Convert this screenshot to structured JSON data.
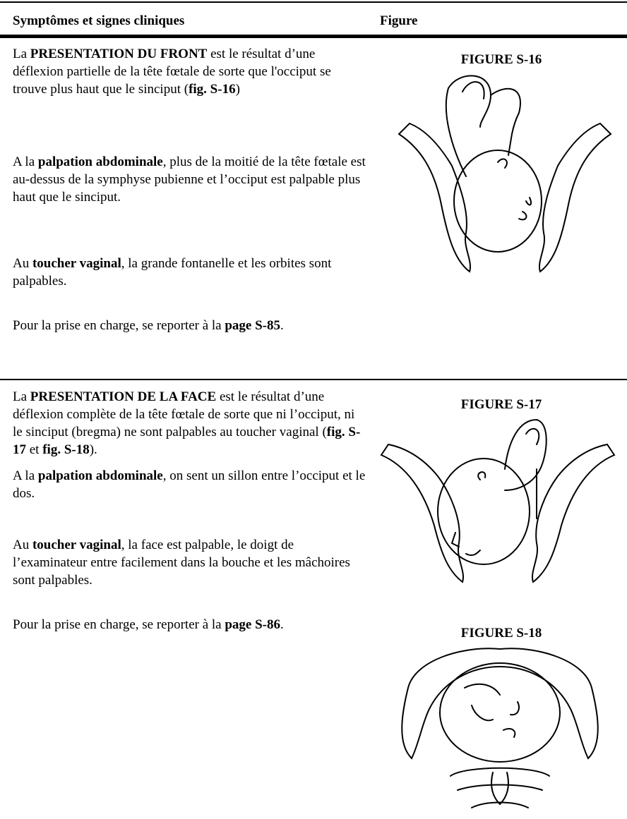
{
  "header": {
    "columns": [
      "Symptômes et signes cliniques",
      "Figure"
    ]
  },
  "rows": [
    {
      "paragraphs": [
        [
          {
            "text": "La ",
            "bold": false
          },
          {
            "text": "PRESENTATION DU FRONT",
            "bold": true
          },
          {
            "text": " est le résultat d’une déflexion partielle de la tête fœtale de sorte que l'occiput se trouve plus haut que le sinciput (",
            "bold": false
          },
          {
            "text": "fig. S-16",
            "bold": true
          },
          {
            "text": ")",
            "bold": false
          }
        ],
        [
          {
            "text": "A la ",
            "bold": false
          },
          {
            "text": "palpation abdominale",
            "bold": true
          },
          {
            "text": ", plus de la moitié de la tête fœtale est au-dessus de la symphyse pubienne et l’occiput est palpable plus haut que le sinciput.",
            "bold": false
          }
        ],
        [
          {
            "text": "Au ",
            "bold": false
          },
          {
            "text": "toucher vaginal",
            "bold": true
          },
          {
            "text": ", la grande fontanelle et les orbites sont palpables.",
            "bold": false
          }
        ],
        [
          {
            "text": "Pour la prise en charge, se reporter à la ",
            "bold": false
          },
          {
            "text": "page S-85",
            "bold": true
          },
          {
            "text": ".",
            "bold": false
          }
        ]
      ],
      "figures": [
        "FIGURE S-16"
      ]
    },
    {
      "paragraphs": [
        [
          {
            "text": "La ",
            "bold": false
          },
          {
            "text": "PRESENTATION DE LA FACE",
            "bold": true
          },
          {
            "text": " est le résultat d’une déflexion complète de la tête fœtale de sorte que ni l’occiput, ni le sinciput (bregma) ne sont palpables au toucher vaginal (",
            "bold": false
          },
          {
            "text": "fig. S-17",
            "bold": true
          },
          {
            "text": " et ",
            "bold": false
          },
          {
            "text": "fig. S-18",
            "bold": true
          },
          {
            "text": ").",
            "bold": false
          }
        ],
        [
          {
            "text": "A la ",
            "bold": false
          },
          {
            "text": "palpation abdominale",
            "bold": true
          },
          {
            "text": ", on sent un sillon entre l’occiput et le dos.",
            "bold": false
          }
        ],
        [
          {
            "text": "Au ",
            "bold": false
          },
          {
            "text": "toucher vaginal",
            "bold": true
          },
          {
            "text": ", la face est palpable, le doigt de l’examinateur entre facilement dans la bouche et les mâchoires sont palpables.",
            "bold": false
          }
        ],
        [
          {
            "text": "Pour la prise en charge, se reporter à la ",
            "bold": false
          },
          {
            "text": "page S-86",
            "bold": true
          },
          {
            "text": ".",
            "bold": false
          }
        ]
      ],
      "figures": [
        "FIGURE S-17",
        "FIGURE S-18"
      ]
    }
  ]
}
